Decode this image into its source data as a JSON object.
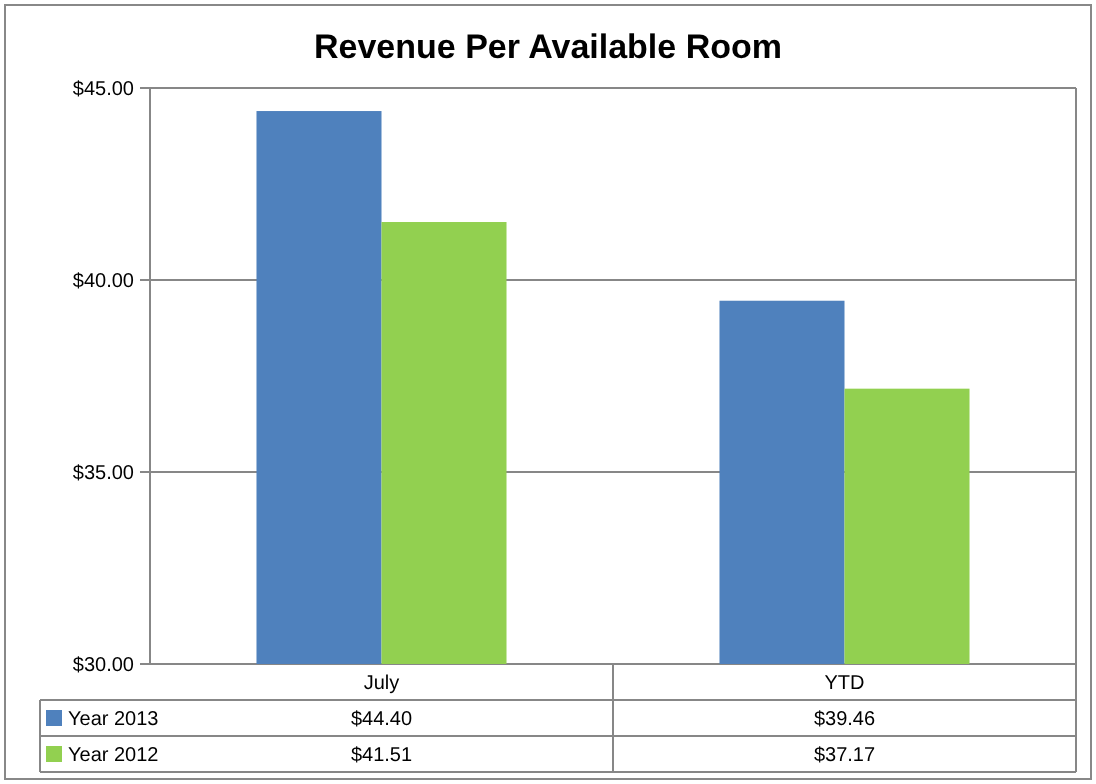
{
  "chart_data": {
    "type": "bar",
    "title": "Revenue Per Available Room",
    "categories": [
      "July",
      "YTD"
    ],
    "series": [
      {
        "name": "Year 2013",
        "color": "#4f81bd",
        "values": [
          44.4,
          39.46
        ],
        "value_labels": [
          "$44.40",
          "$39.46"
        ]
      },
      {
        "name": "Year 2012",
        "color": "#92d050",
        "values": [
          41.51,
          37.17
        ],
        "value_labels": [
          "$41.51",
          "$37.17"
        ]
      }
    ],
    "ylim": [
      30,
      45
    ],
    "yticks": [
      {
        "value": 30,
        "label": "$30.00"
      },
      {
        "value": 35,
        "label": "$35.00"
      },
      {
        "value": 40,
        "label": "$40.00"
      },
      {
        "value": 45,
        "label": "$45.00"
      }
    ],
    "grid": "y",
    "legend": "bottom"
  }
}
